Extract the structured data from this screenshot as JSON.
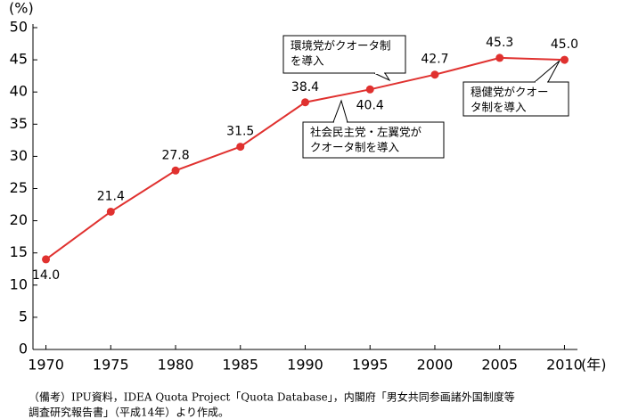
{
  "chart_data": {
    "type": "line",
    "y_unit": "(%)",
    "x_unit": "(年)",
    "x": [
      1970,
      1975,
      1980,
      1985,
      1990,
      1995,
      2000,
      2005,
      2010
    ],
    "values": [
      14.0,
      21.4,
      27.8,
      31.5,
      38.4,
      40.4,
      42.7,
      45.3,
      45.0
    ],
    "value_labels": [
      "14.0",
      "21.4",
      "27.8",
      "31.5",
      "38.4",
      "40.4",
      "42.7",
      "45.3",
      "45.0"
    ],
    "color": "#e0312f",
    "xlim": [
      1969,
      2011
    ],
    "xticks": [
      1970,
      1975,
      1980,
      1985,
      1990,
      1995,
      2000,
      2005,
      2010
    ],
    "ylim": [
      0,
      50
    ],
    "yticks": [
      0,
      5,
      10,
      15,
      20,
      25,
      30,
      35,
      40,
      45,
      50
    ],
    "grid": false,
    "annotations": [
      {
        "lines": [
          "環境党がクオータ制",
          "を導入"
        ]
      },
      {
        "lines": [
          "社会民主党・左翼党が",
          "クオータ制を導入"
        ]
      },
      {
        "lines": [
          "穏健党がクオー",
          "タ制を導入"
        ]
      }
    ]
  },
  "note": [
    "（備考）IPU資料，IDEA Quota Project「Quota Database」，内閣府「男女共同参画諸外国制度等",
    "調査研究報告書」（平成14年）より作成。"
  ]
}
